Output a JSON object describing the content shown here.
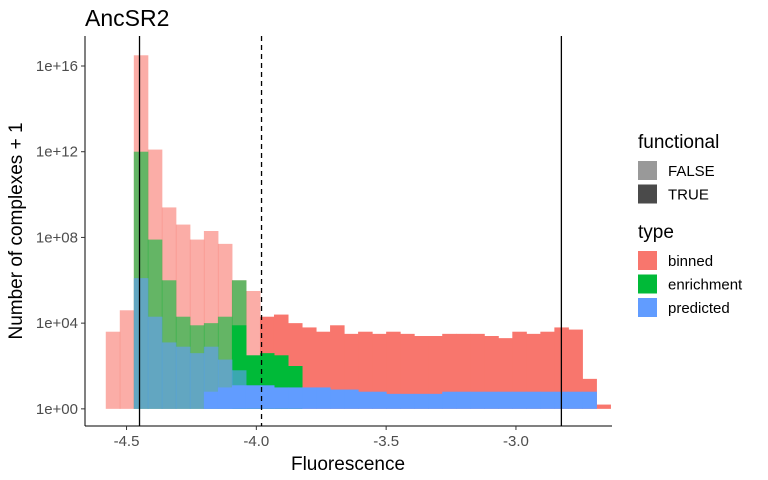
{
  "chart_data": {
    "type": "bar",
    "title": "AncSR2",
    "xlabel": "Fluorescence",
    "ylabel": "Number of complexes + 1",
    "x_scale": "linear",
    "y_scale": "log10",
    "xlim": [
      -4.66,
      -2.63
    ],
    "ylim_log10": [
      -0.8,
      17.4
    ],
    "x_ticks": [
      {
        "value": -4.5,
        "label": "-4.5"
      },
      {
        "value": -4.0,
        "label": "-4.0"
      },
      {
        "value": -3.5,
        "label": "-3.5"
      },
      {
        "value": -3.0,
        "label": "-3.0"
      }
    ],
    "y_ticks": [
      {
        "log10": 0,
        "label": "1e+00"
      },
      {
        "log10": 4,
        "label": "1e+04"
      },
      {
        "log10": 8,
        "label": "1e+08"
      },
      {
        "log10": 12,
        "label": "1e+12"
      },
      {
        "log10": 16,
        "label": "1e+16"
      }
    ],
    "grid": false,
    "bin_width": 0.054,
    "reference_lines": [
      {
        "x": -4.45,
        "style": "solid"
      },
      {
        "x": -3.98,
        "style": "dashed"
      },
      {
        "x": -2.825,
        "style": "solid"
      }
    ],
    "series": [
      {
        "name": "binned",
        "color": "#F8766D",
        "segments": [
          {
            "x_start": -4.58,
            "functional": "FALSE",
            "log10": [
              3.6,
              4.6,
              16.5,
              12.1,
              9.4,
              8.6,
              7.9,
              8.3,
              7.7,
              6.0,
              5.5
            ]
          },
          {
            "x_start": -3.986,
            "functional": "TRUE",
            "log10": [
              4.3,
              4.4,
              4.0,
              3.8,
              3.6,
              3.9,
              3.5,
              3.6,
              3.5,
              3.6,
              3.5,
              3.4,
              3.4,
              3.5,
              3.5,
              3.5,
              3.4,
              3.3,
              3.6,
              3.5,
              3.6,
              3.8,
              3.7,
              1.4,
              0.2
            ]
          }
        ]
      },
      {
        "name": "enrichment",
        "color": "#00BA38",
        "segments": [
          {
            "x_start": -4.472,
            "functional": "FALSE",
            "log10": [
              12.0,
              7.9,
              6.0,
              4.3,
              3.9,
              4.0,
              4.3,
              6.0
            ]
          },
          {
            "x_start": -4.094,
            "functional": "TRUE",
            "log10": [
              3.9,
              2.5,
              2.6,
              2.5,
              2.0
            ]
          }
        ]
      },
      {
        "name": "predicted",
        "color": "#619CFF",
        "segments": [
          {
            "x_start": -4.472,
            "functional": "FALSE",
            "log10": [
              6.1,
              4.3,
              3.1,
              2.9,
              2.6,
              2.9,
              2.3,
              1.8
            ]
          },
          {
            "x_start": -4.202,
            "functional": "TRUE",
            "log10": [
              0.8,
              1.0,
              1.1,
              1.1,
              1.1,
              1.0,
              1.0,
              1.0,
              1.0,
              0.9,
              0.9,
              0.8,
              0.8,
              0.7,
              0.7,
              0.7,
              0.7,
              0.8,
              0.8,
              0.8,
              0.8,
              0.8,
              0.8,
              0.8,
              0.8,
              0.8,
              0.8,
              0.8
            ]
          }
        ]
      }
    ],
    "legends": [
      {
        "title": "functional",
        "items": [
          {
            "label": "FALSE",
            "color": "#999999"
          },
          {
            "label": "TRUE",
            "color": "#4a4a4a"
          }
        ]
      },
      {
        "title": "type",
        "items": [
          {
            "label": "binned",
            "color": "#F8766D"
          },
          {
            "label": "enrichment",
            "color": "#00BA38"
          },
          {
            "label": "predicted",
            "color": "#619CFF"
          }
        ]
      }
    ],
    "legend_position": "right"
  }
}
